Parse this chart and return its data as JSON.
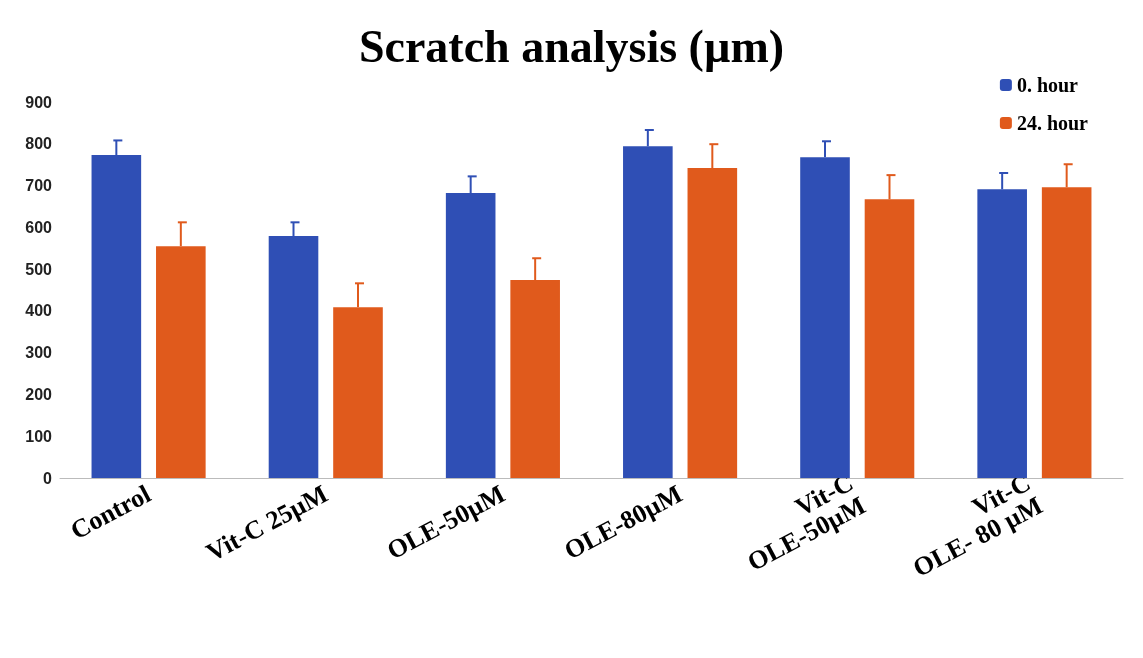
{
  "chart_data": {
    "type": "bar",
    "title": "Scratch analysis (µm)",
    "categories": [
      "Control",
      "Vit-C 25µM",
      "OLE-50µM",
      "OLE-80µM",
      "Vit-C\nOLE-50µM",
      "Vit-C\nOLE- 80 µM"
    ],
    "series": [
      {
        "name": "0. hour",
        "color": "#2f4fb5",
        "values": [
          773,
          579,
          682,
          794,
          768,
          691
        ],
        "errors": [
          [
            773,
            808
          ],
          [
            579,
            612
          ],
          [
            682,
            722
          ],
          [
            794,
            833
          ],
          [
            768,
            806
          ],
          [
            691,
            730
          ]
        ]
      },
      {
        "name": "24. hour",
        "color": "#e05a1c",
        "values": [
          555,
          409,
          474,
          742,
          667,
          696
        ],
        "errors": [
          [
            555,
            612
          ],
          [
            409,
            466
          ],
          [
            474,
            526
          ],
          [
            742,
            799
          ],
          [
            667,
            725
          ],
          [
            696,
            751
          ]
        ]
      }
    ],
    "ylim": [
      0,
      900
    ],
    "yticks": [
      0,
      100,
      200,
      300,
      400,
      500,
      600,
      700,
      800,
      900
    ],
    "grid": false,
    "legend": "top right"
  }
}
